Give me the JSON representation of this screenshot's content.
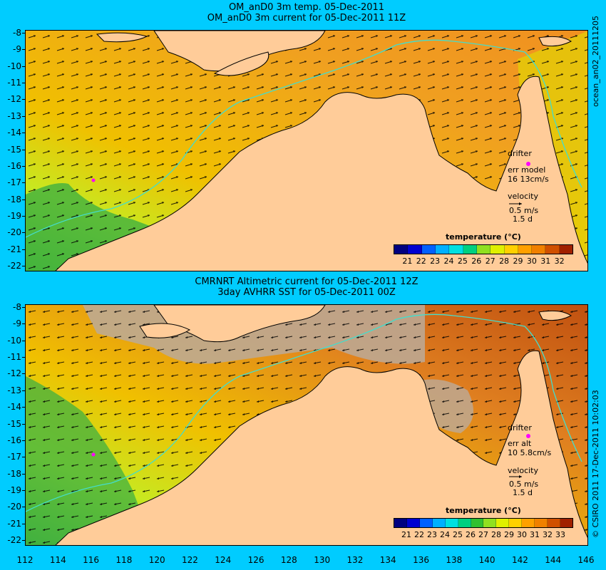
{
  "top": {
    "title_line1": "OM_anD0 3m temp. 05-Dec-2011",
    "title_line2": "OM_anD0 3m current for 05-Dec-2011 11Z",
    "legend": {
      "drifter": "drifter",
      "err_line1": "err model",
      "err_line2": "16 13cm/s",
      "velocity": "velocity",
      "speed": "0.5 m/s",
      "days": "1.5 d"
    },
    "colorbar_title": "temperature (°C)",
    "colorbar_labels": [
      "21",
      "22",
      "23",
      "24",
      "25",
      "26",
      "27",
      "28",
      "29",
      "30",
      "31",
      "32"
    ],
    "side_label": "ocean_an02_20111205"
  },
  "bottom": {
    "title_line1": "CMRNRT Altimetric current for 05-Dec-2011 12Z",
    "title_line2": "3day AVHRR SST for 05-Dec-2011 00Z",
    "legend": {
      "drifter": "drifter",
      "err_line1": "err alt",
      "err_line2": "10 5.8cm/s",
      "velocity": "velocity",
      "speed": "0.5 m/s",
      "days": "1.5 d"
    },
    "colorbar_title": "temperature (°C)",
    "colorbar_labels": [
      "21",
      "22",
      "23",
      "24",
      "25",
      "26",
      "27",
      "28",
      "29",
      "30",
      "31",
      "32",
      "33"
    ],
    "side_label": "© CSIRO 2011    17-Dec-2011 10:02:03"
  },
  "y_labels": [
    "-8",
    "-9",
    "-10",
    "-11",
    "-12",
    "-13",
    "-14",
    "-15",
    "-16",
    "-17",
    "-18",
    "-19",
    "-20",
    "-21",
    "-22"
  ],
  "x_labels": [
    "112",
    "114",
    "116",
    "118",
    "120",
    "122",
    "124",
    "126",
    "128",
    "130",
    "132",
    "134",
    "136",
    "138",
    "140",
    "142",
    "144",
    "146"
  ],
  "colors": {
    "background": "#00ccff",
    "land": "#ffcc99",
    "coastline": "#000000",
    "isobath": "#44ddcc",
    "drifter": "#ff00ff",
    "no_data": "#bbaa99",
    "colorbar": [
      "#000080",
      "#0000d0",
      "#0060ff",
      "#00b0ff",
      "#00e0e0",
      "#00d080",
      "#30c030",
      "#90e020",
      "#e0f000",
      "#ffd000",
      "#ffa000",
      "#f08000",
      "#d05000",
      "#a02000"
    ]
  }
}
